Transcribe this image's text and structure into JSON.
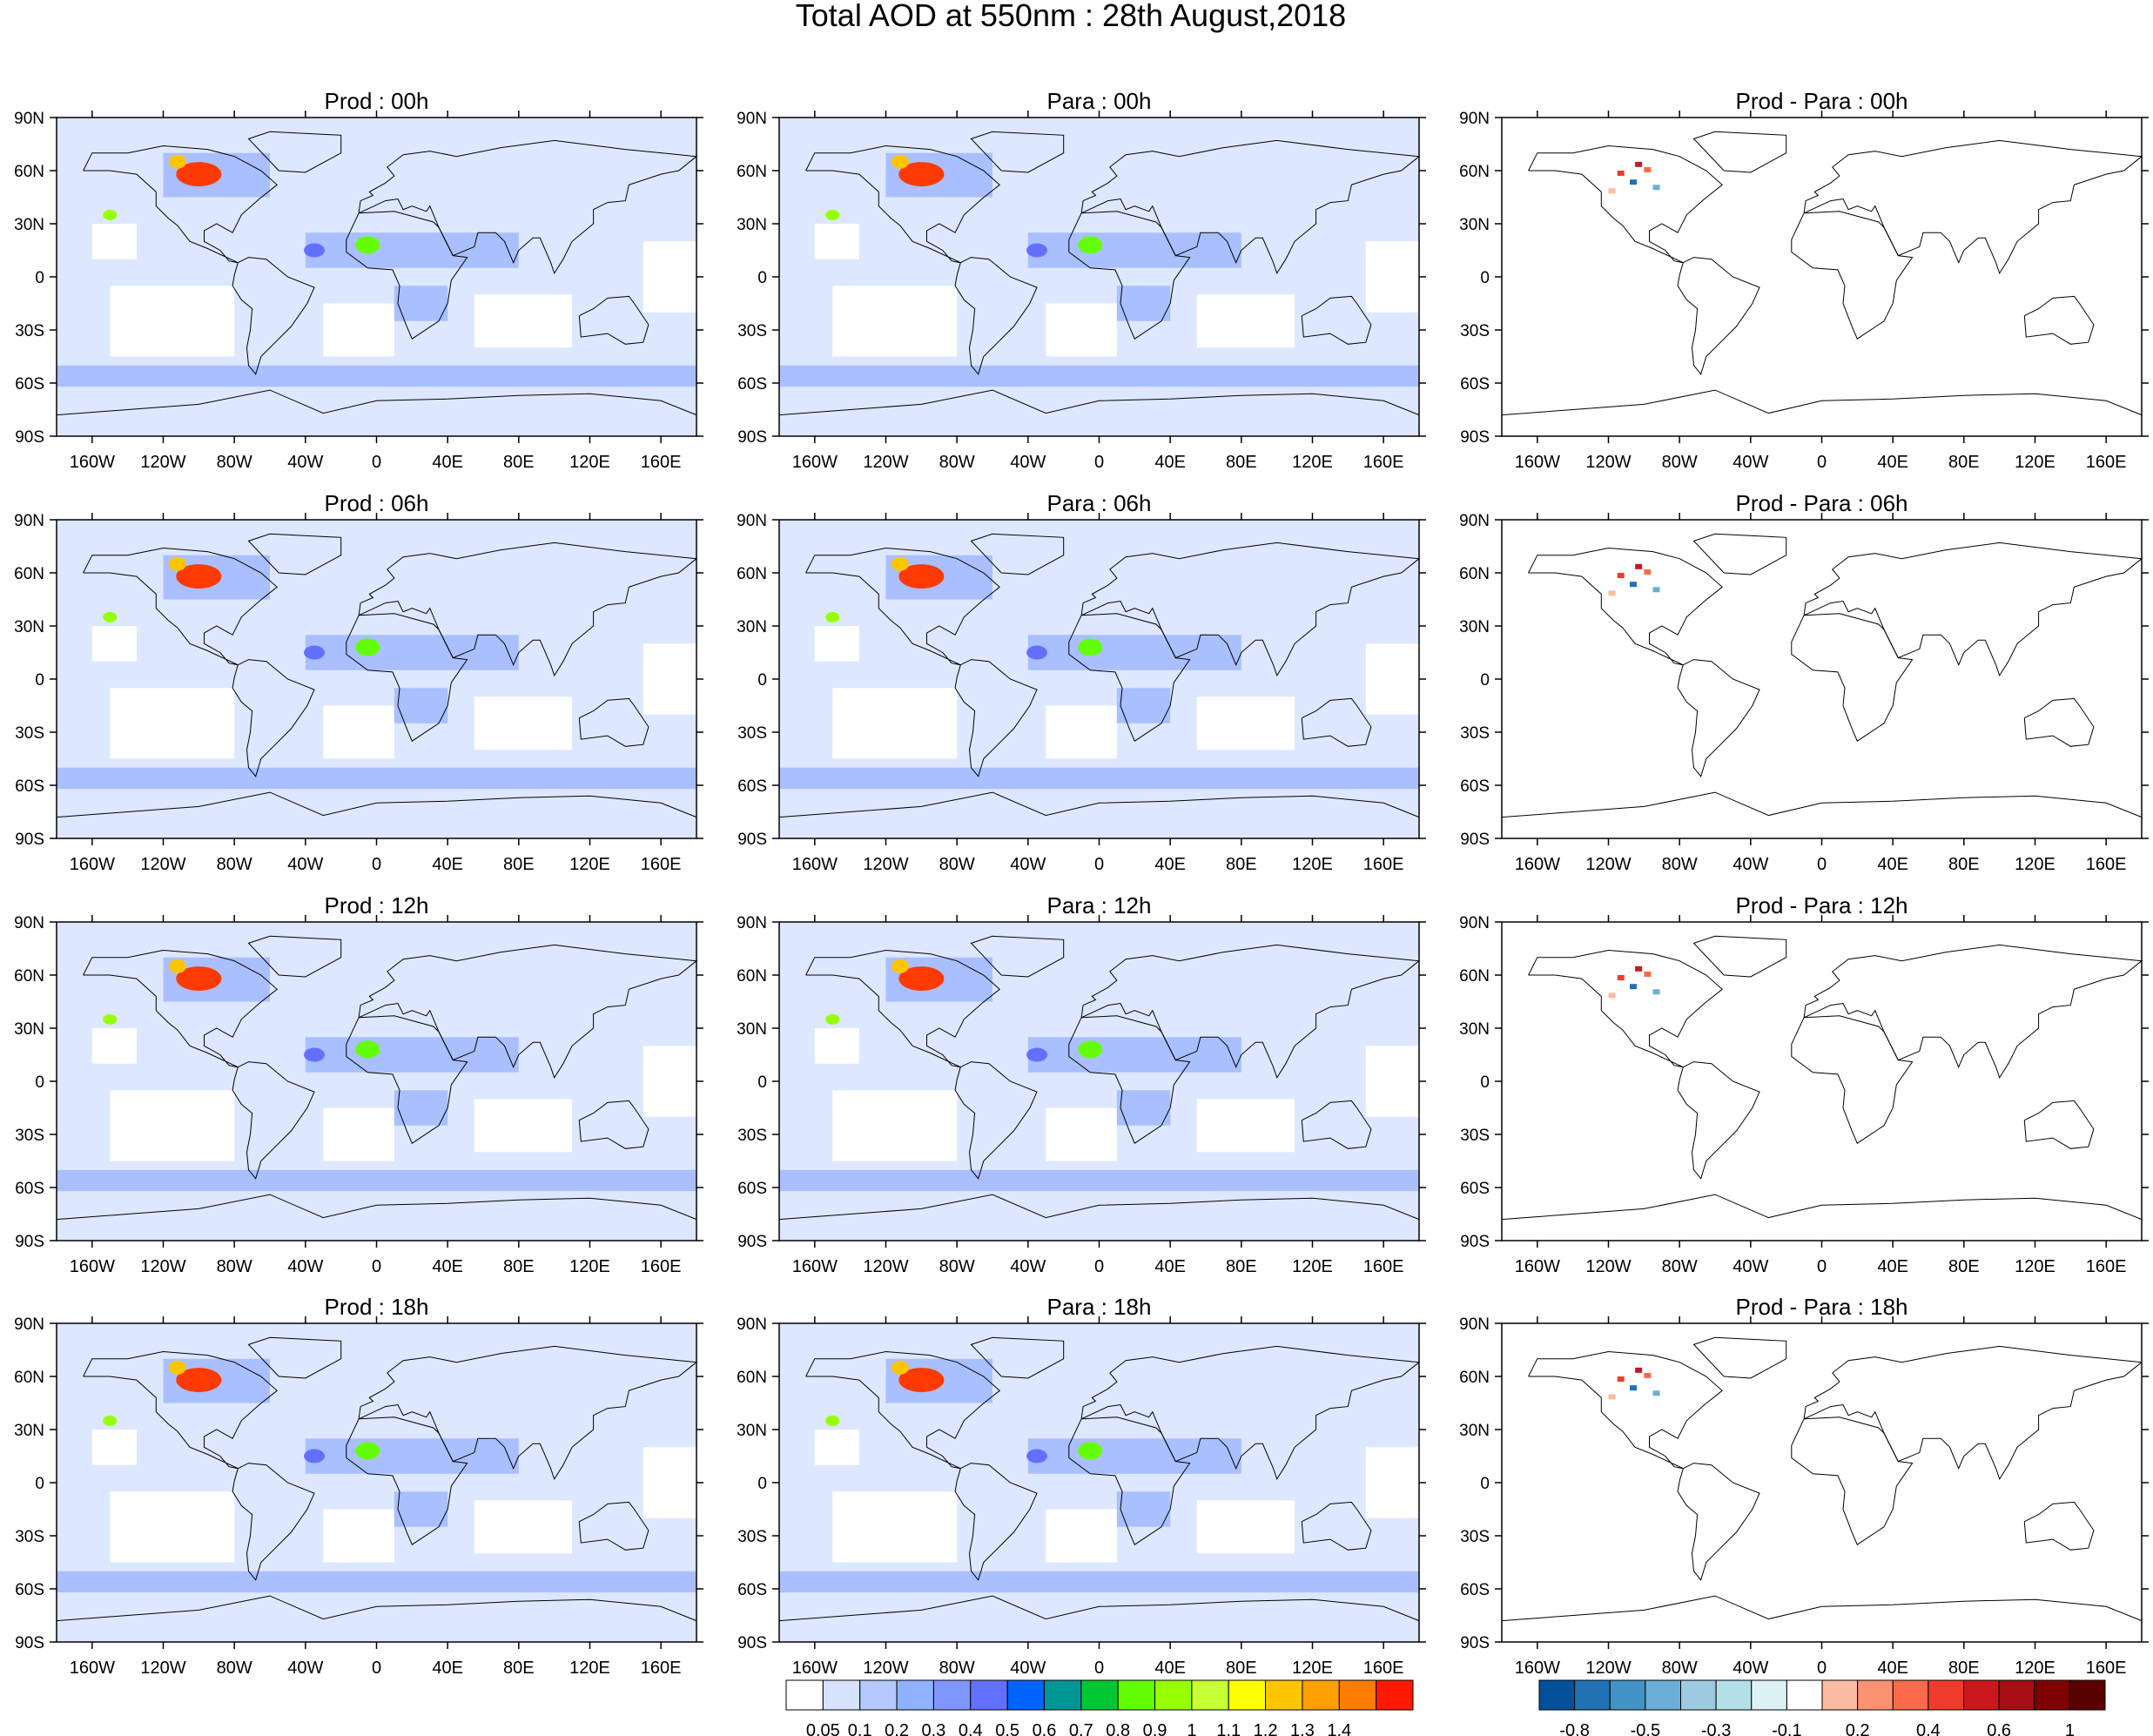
{
  "title": "Total AOD at 550nm : 28th August,2018",
  "lat_ticks": [
    "90N",
    "60N",
    "30N",
    "0",
    "30S",
    "60S",
    "90S"
  ],
  "lon_ticks": [
    "160W",
    "120W",
    "80W",
    "40W",
    "0",
    "40E",
    "80E",
    "120E",
    "160E"
  ],
  "panels": [
    {
      "title": "Prod : 00h",
      "kind": "aod"
    },
    {
      "title": "Para : 00h",
      "kind": "aod"
    },
    {
      "title": "Prod - Para : 00h",
      "kind": "diff"
    },
    {
      "title": "Prod : 06h",
      "kind": "aod"
    },
    {
      "title": "Para : 06h",
      "kind": "aod"
    },
    {
      "title": "Prod - Para : 06h",
      "kind": "diff"
    },
    {
      "title": "Prod : 12h",
      "kind": "aod"
    },
    {
      "title": "Para : 12h",
      "kind": "aod"
    },
    {
      "title": "Prod - Para : 12h",
      "kind": "diff"
    },
    {
      "title": "Prod : 18h",
      "kind": "aod"
    },
    {
      "title": "Para : 18h",
      "kind": "aod"
    },
    {
      "title": "Prod - Para : 18h",
      "kind": "diff"
    }
  ],
  "aod_colorbar": {
    "labels": [
      "0.05",
      "0.1",
      "0.2",
      "0.3",
      "0.4",
      "0.5",
      "0.6",
      "0.7",
      "0.8",
      "0.9",
      "1",
      "1.1",
      "1.2",
      "1.3",
      "1.4"
    ],
    "colors": [
      "#ffffff",
      "#d6e2ff",
      "#b5c9ff",
      "#8eb2ff",
      "#7f96ff",
      "#6370ff",
      "#0063ff",
      "#009696",
      "#00c633",
      "#63ff00",
      "#96ff00",
      "#c6ff33",
      "#ffff00",
      "#ffc600",
      "#ffa000",
      "#ff7c00",
      "#ff1900"
    ]
  },
  "diff_colorbar": {
    "labels": [
      "-0.8",
      "-0.5",
      "-0.3",
      "-0.1",
      "0.2",
      "0.4",
      "0.6",
      "1"
    ],
    "colors": [
      "#05509a",
      "#2171b5",
      "#4292c6",
      "#6baed6",
      "#9ecae1",
      "#b3dfe8",
      "#ddf2f7",
      "#ffffff",
      "#fcbba1",
      "#fc9272",
      "#fb6a4a",
      "#ef3b2c",
      "#cb181d",
      "#a50f15",
      "#7f0000",
      "#5a0000"
    ]
  }
}
